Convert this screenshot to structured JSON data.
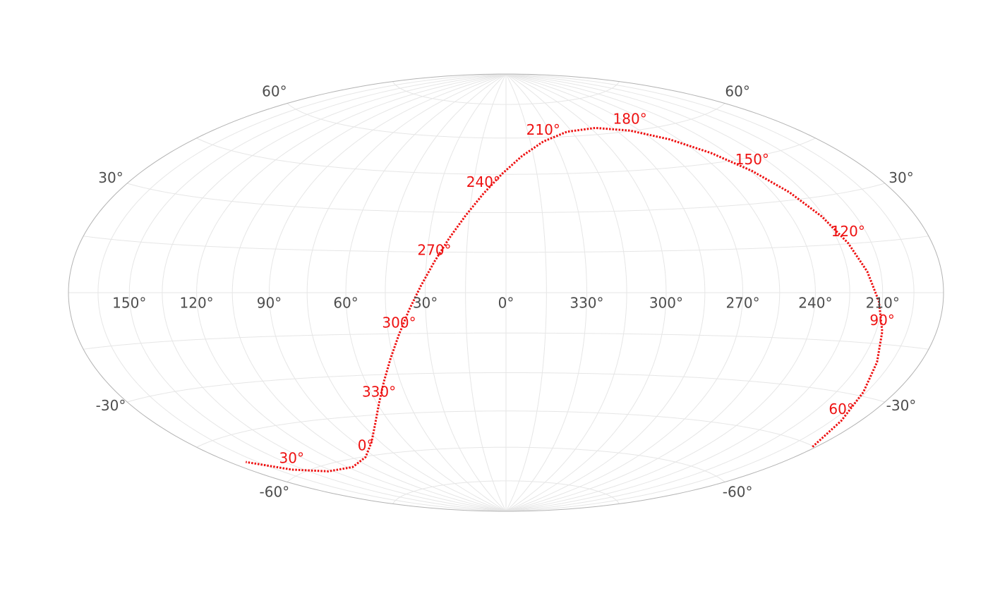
{
  "chart_data": {
    "type": "line",
    "projection": "hammer",
    "xlim": [
      180,
      -180
    ],
    "ylim": [
      -90,
      90
    ],
    "grid_step": 15,
    "xticks": [
      {
        "value": 150,
        "label": "150°"
      },
      {
        "value": 120,
        "label": "120°"
      },
      {
        "value": 90,
        "label": "90°"
      },
      {
        "value": 60,
        "label": "60°"
      },
      {
        "value": 30,
        "label": "30°"
      },
      {
        "value": 0,
        "label": "0°"
      },
      {
        "value": 330,
        "label": "330°"
      },
      {
        "value": 300,
        "label": "300°"
      },
      {
        "value": 270,
        "label": "270°"
      },
      {
        "value": 240,
        "label": "240°"
      },
      {
        "value": 210,
        "label": "210°"
      }
    ],
    "yticks": [
      {
        "value": 60,
        "label": "60°"
      },
      {
        "value": 30,
        "label": "30°"
      },
      {
        "value": -30,
        "label": "-30°"
      },
      {
        "value": -60,
        "label": "-60°"
      }
    ],
    "color": "#ee1111",
    "ra": [
      50,
      60,
      70,
      80,
      90,
      100,
      110,
      120,
      130,
      140,
      150,
      160,
      170,
      180,
      190,
      200,
      210,
      220,
      230,
      240,
      250,
      260,
      270,
      280,
      290,
      300,
      310,
      320,
      330,
      340,
      350,
      0,
      10,
      20,
      30,
      40
    ],
    "x": [
      181.9,
      190.0,
      196.5,
      202.1,
      207.0,
      211.6,
      216.2,
      220.9,
      226.1,
      232.0,
      239.1,
      248.2,
      260.2,
      276.3,
      296.7,
      318.3,
      337.0,
      351.3,
      1.9,
      10.0,
      16.5,
      22.1,
      27.0,
      31.6,
      36.2,
      40.9,
      46.1,
      52.0,
      59.1,
      68.2,
      80.2,
      96.3,
      116.7,
      138.3,
      157.0,
      171.3
    ],
    "y": [
      -45.2,
      -37.3,
      -28.9,
      -20.2,
      -11.4,
      -2.6,
      6.3,
      15.2,
      24.0,
      32.5,
      40.7,
      48.4,
      55.1,
      60.2,
      62.7,
      62.0,
      58.3,
      52.4,
      45.2,
      37.3,
      28.9,
      20.2,
      11.4,
      2.6,
      -6.3,
      -15.2,
      -24.0,
      -32.5,
      -40.7,
      -48.4,
      -55.1,
      -60.2,
      -62.7,
      -62.0,
      -58.3,
      -52.4
    ],
    "annotations": [
      {
        "ra": 0,
        "text": "0°"
      },
      {
        "ra": 30,
        "text": "30°"
      },
      {
        "ra": 60,
        "text": "60°"
      },
      {
        "ra": 90,
        "text": "90°"
      },
      {
        "ra": 120,
        "text": "120°"
      },
      {
        "ra": 150,
        "text": "150°"
      },
      {
        "ra": 180,
        "text": "180°"
      },
      {
        "ra": 210,
        "text": "210°"
      },
      {
        "ra": 240,
        "text": "240°"
      },
      {
        "ra": 270,
        "text": "270°"
      },
      {
        "ra": 300,
        "text": "300°"
      },
      {
        "ra": 330,
        "text": "330°"
      }
    ]
  }
}
